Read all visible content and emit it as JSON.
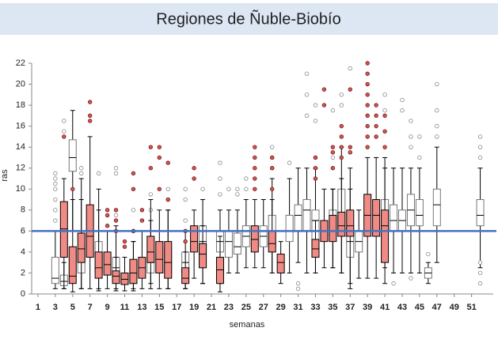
{
  "chart_data": {
    "type": "box",
    "title": "Regiones de Ñuble-Biobío",
    "xlabel": "semanas",
    "ylabel": "ras",
    "xlim": [
      0,
      53.5
    ],
    "xticks": [
      1,
      3,
      5,
      7,
      9,
      11,
      13,
      15,
      17,
      19,
      21,
      23,
      25,
      27,
      29,
      31,
      33,
      35,
      37,
      39,
      41,
      43,
      45,
      47,
      49,
      51
    ],
    "ylim": [
      0,
      22
    ],
    "yticks": [
      0,
      2,
      4,
      6,
      8,
      10,
      12,
      14,
      16,
      18,
      20,
      22
    ],
    "reference_line": {
      "value": 6,
      "color": "#4472c4"
    },
    "series": [
      {
        "color": "#ffffff",
        "flier_color": "#ffffff",
        "boxes": [
          {
            "x": 3,
            "whislo": 0.5,
            "q1": 1,
            "med": 1.5,
            "q3": 3.5,
            "whishi": 6,
            "fliers": [
              7,
              8,
              9,
              10,
              10.5,
              11,
              11.5
            ]
          },
          {
            "x": 4,
            "whislo": 0.5,
            "q1": 0.8,
            "med": 1.2,
            "q3": 1.8,
            "whishi": 3,
            "fliers": [
              15.5,
              16.5
            ]
          },
          {
            "x": 5,
            "whislo": 6,
            "q1": 11.7,
            "med": 13,
            "q3": 14.7,
            "whishi": 17.5,
            "fliers": []
          },
          {
            "x": 6,
            "whislo": 0.5,
            "q1": 2,
            "med": 3.2,
            "q3": 4.5,
            "whishi": 11,
            "fliers": [
              11.5,
              12
            ]
          },
          {
            "x": 8,
            "whislo": 0.5,
            "q1": 2,
            "med": 3,
            "q3": 5,
            "whishi": 10,
            "fliers": [
              11.5
            ]
          },
          {
            "x": 10,
            "whislo": 0.5,
            "q1": 1.5,
            "med": 2.5,
            "q3": 3.5,
            "whishi": 6.5,
            "fliers": [
              7.5,
              11.5,
              12
            ]
          },
          {
            "x": 12,
            "whislo": 0.5,
            "q1": 1,
            "med": 2,
            "q3": 3,
            "whishi": 5,
            "fliers": [
              6,
              8
            ]
          },
          {
            "x": 14,
            "whislo": 0.5,
            "q1": 2,
            "med": 3,
            "q3": 4,
            "whishi": 7,
            "fliers": [
              8,
              9.5
            ]
          },
          {
            "x": 16,
            "whislo": 0.5,
            "q1": 2,
            "med": 3,
            "q3": 4.5,
            "whishi": 8,
            "fliers": [
              9,
              10
            ]
          },
          {
            "x": 18,
            "whislo": 0.5,
            "q1": 2,
            "med": 3,
            "q3": 4,
            "whishi": 6,
            "fliers": [
              7,
              9,
              10
            ]
          },
          {
            "x": 20,
            "whislo": 1,
            "q1": 2.5,
            "med": 5,
            "q3": 6.5,
            "whishi": 9,
            "fliers": [
              10
            ]
          },
          {
            "x": 22,
            "whislo": 1,
            "q1": 4,
            "med": 5,
            "q3": 6,
            "whishi": 8,
            "fliers": [
              9.5,
              11,
              12.5
            ]
          },
          {
            "x": 23,
            "whislo": 2,
            "q1": 3.5,
            "med": 5,
            "q3": 6,
            "whishi": 8,
            "fliers": [
              10
            ]
          },
          {
            "x": 24,
            "whislo": 2,
            "q1": 3.8,
            "med": 4.5,
            "q3": 5.8,
            "whishi": 8,
            "fliers": [
              9.5,
              10
            ]
          },
          {
            "x": 25,
            "whislo": 2.5,
            "q1": 4.5,
            "med": 5.5,
            "q3": 6.5,
            "whishi": 9,
            "fliers": [
              10,
              11
            ]
          },
          {
            "x": 27,
            "whislo": 2.5,
            "q1": 4.5,
            "med": 5.5,
            "q3": 6.5,
            "whishi": 9,
            "fliers": []
          },
          {
            "x": 28,
            "whislo": 2,
            "q1": 4.5,
            "med": 5.5,
            "q3": 7.5,
            "whishi": 11,
            "fliers": [
              12,
              13,
              14
            ]
          },
          {
            "x": 30,
            "whislo": 2,
            "q1": 5,
            "med": 6,
            "q3": 7.5,
            "whishi": 11,
            "fliers": [
              12.5
            ]
          },
          {
            "x": 31,
            "whislo": 3,
            "q1": 6,
            "med": 7.5,
            "q3": 8.5,
            "whishi": 12,
            "fliers": [
              1,
              0.5
            ]
          },
          {
            "x": 32,
            "whislo": 2,
            "q1": 6,
            "med": 8,
            "q3": 9,
            "whishi": 12,
            "fliers": [
              17,
              19,
              21
            ]
          },
          {
            "x": 33,
            "whislo": 2,
            "q1": 5,
            "med": 7,
            "q3": 8,
            "whishi": 12,
            "fliers": [
              13,
              16.5,
              18
            ]
          },
          {
            "x": 35,
            "whislo": 2.5,
            "q1": 5.5,
            "med": 6.5,
            "q3": 8,
            "whishi": 10,
            "fliers": [
              13,
              17.5
            ]
          },
          {
            "x": 36,
            "whislo": 2,
            "q1": 6,
            "med": 7.5,
            "q3": 10,
            "whishi": 14,
            "fliers": [
              18,
              19
            ]
          },
          {
            "x": 37,
            "whislo": 1,
            "q1": 3.5,
            "med": 5,
            "q3": 6.5,
            "whishi": 10,
            "fliers": [
              21.5
            ]
          },
          {
            "x": 38,
            "whislo": 1.5,
            "q1": 4,
            "med": 5,
            "q3": 6,
            "whishi": 8,
            "fliers": []
          },
          {
            "x": 41,
            "whislo": 2.5,
            "q1": 6,
            "med": 7,
            "q3": 9,
            "whishi": 13,
            "fliers": [
              17.5,
              19
            ]
          },
          {
            "x": 42,
            "whislo": 2,
            "q1": 6,
            "med": 7,
            "q3": 8.5,
            "whishi": 12,
            "fliers": [
              1
            ]
          },
          {
            "x": 43,
            "whislo": 2,
            "q1": 6,
            "med": 7,
            "q3": 8,
            "whishi": 12,
            "fliers": [
              17.5,
              18.5
            ]
          },
          {
            "x": 44,
            "whislo": 2,
            "q1": 6.5,
            "med": 8,
            "q3": 9.5,
            "whishi": 12,
            "fliers": [
              14,
              15,
              16.5,
              1.5
            ]
          },
          {
            "x": 45,
            "whislo": 2,
            "q1": 6.5,
            "med": 7.5,
            "q3": 9,
            "whishi": 12,
            "fliers": [
              13,
              15
            ]
          },
          {
            "x": 46,
            "whislo": 1,
            "q1": 1.5,
            "med": 2,
            "q3": 2.5,
            "whishi": 3,
            "fliers": [
              3.8
            ]
          },
          {
            "x": 47,
            "whislo": 3,
            "q1": 6.5,
            "med": 8.5,
            "q3": 10,
            "whishi": 14,
            "fliers": [
              15,
              16,
              17.5,
              20
            ]
          },
          {
            "x": 52,
            "whislo": 2.5,
            "q1": 6.5,
            "med": 7.5,
            "q3": 9,
            "whishi": 12,
            "fliers": [
              13,
              14,
              15,
              3,
              2,
              1
            ]
          }
        ]
      },
      {
        "color": "#f08a84",
        "flier_color": "#d9534f",
        "boxes": [
          {
            "x": 4,
            "whislo": 0.5,
            "q1": 3.5,
            "med": 6.2,
            "q3": 8.8,
            "whishi": 11,
            "fliers": [
              15
            ]
          },
          {
            "x": 5,
            "whislo": 0.2,
            "q1": 1,
            "med": 1.7,
            "q3": 4.5,
            "whishi": 9,
            "fliers": [
              10
            ]
          },
          {
            "x": 6,
            "whislo": 0.5,
            "q1": 3,
            "med": 4.3,
            "q3": 5.8,
            "whishi": 9,
            "fliers": []
          },
          {
            "x": 7,
            "whislo": 0.5,
            "q1": 3.5,
            "med": 5.5,
            "q3": 8.5,
            "whishi": 15,
            "fliers": [
              16.5,
              17,
              18.3
            ]
          },
          {
            "x": 8,
            "whislo": 0.3,
            "q1": 1.5,
            "med": 2.5,
            "q3": 4,
            "whishi": 8,
            "fliers": []
          },
          {
            "x": 9,
            "whislo": 0.5,
            "q1": 1.8,
            "med": 2.8,
            "q3": 4,
            "whishi": 6,
            "fliers": [
              6.5,
              7.5,
              8
            ]
          },
          {
            "x": 10,
            "whislo": 0.3,
            "q1": 1,
            "med": 1.7,
            "q3": 2.2,
            "whishi": 3.5,
            "fliers": [
              6,
              7,
              8
            ]
          },
          {
            "x": 11,
            "whislo": 0.3,
            "q1": 0.9,
            "med": 1.4,
            "q3": 2,
            "whishi": 3.5,
            "fliers": [
              4.5,
              5
            ]
          },
          {
            "x": 12,
            "whislo": 0.3,
            "q1": 1,
            "med": 2,
            "q3": 3.3,
            "whishi": 5,
            "fliers": [
              6,
              10,
              11.5
            ]
          },
          {
            "x": 13,
            "whislo": 0.5,
            "q1": 1.5,
            "med": 2.5,
            "q3": 3.5,
            "whishi": 6,
            "fliers": [
              7,
              8
            ]
          },
          {
            "x": 14,
            "whislo": 1,
            "q1": 3,
            "med": 4,
            "q3": 5.5,
            "whishi": 9,
            "fliers": [
              12,
              14
            ]
          },
          {
            "x": 15,
            "whislo": 0.5,
            "q1": 2,
            "med": 3.3,
            "q3": 5,
            "whishi": 8,
            "fliers": [
              10,
              13,
              14
            ]
          },
          {
            "x": 16,
            "whislo": 0.5,
            "q1": 1.5,
            "med": 3,
            "q3": 5,
            "whishi": 8,
            "fliers": [
              9,
              12.5
            ]
          },
          {
            "x": 18,
            "whislo": 0.5,
            "q1": 1,
            "med": 1.5,
            "q3": 2.5,
            "whishi": 4,
            "fliers": [
              5,
              6
            ]
          },
          {
            "x": 19,
            "whislo": 1.5,
            "q1": 4,
            "med": 5,
            "q3": 6.5,
            "whishi": 8,
            "fliers": [
              11,
              12
            ]
          },
          {
            "x": 20,
            "whislo": 1,
            "q1": 2.5,
            "med": 3.8,
            "q3": 4.8,
            "whishi": 6.5,
            "fliers": []
          },
          {
            "x": 22,
            "whislo": 0.2,
            "q1": 1,
            "med": 2.3,
            "q3": 3.5,
            "whishi": 5.5,
            "fliers": []
          },
          {
            "x": 26,
            "whislo": 2.5,
            "q1": 4,
            "med": 5.2,
            "q3": 6.5,
            "whishi": 9,
            "fliers": [
              10,
              11,
              12,
              13,
              14
            ]
          },
          {
            "x": 28,
            "whislo": 2,
            "q1": 4,
            "med": 4.8,
            "q3": 6,
            "whishi": 9,
            "fliers": [
              10,
              12,
              13
            ]
          },
          {
            "x": 29,
            "whislo": 1,
            "q1": 2,
            "med": 3,
            "q3": 3.8,
            "whishi": 5,
            "fliers": []
          },
          {
            "x": 33,
            "whislo": 2,
            "q1": 3.5,
            "med": 4.3,
            "q3": 5.2,
            "whishi": 7,
            "fliers": [
              11,
              12,
              13
            ]
          },
          {
            "x": 34,
            "whislo": 2.5,
            "q1": 5,
            "med": 6,
            "q3": 7,
            "whishi": 10,
            "fliers": [
              18,
              19.5
            ]
          },
          {
            "x": 35,
            "whislo": 2.5,
            "q1": 5,
            "med": 6,
            "q3": 7.5,
            "whishi": 10,
            "fliers": [
              12,
              13.5,
              14
            ]
          },
          {
            "x": 36,
            "whislo": 2,
            "q1": 5.5,
            "med": 6.5,
            "q3": 7.8,
            "whishi": 11,
            "fliers": [
              13,
              14,
              15,
              16
            ]
          },
          {
            "x": 37,
            "whislo": 0.5,
            "q1": 5.5,
            "med": 6.5,
            "q3": 8,
            "whishi": 12,
            "fliers": [
              13.5,
              14,
              19.5
            ]
          },
          {
            "x": 39,
            "whislo": 1.5,
            "q1": 5.5,
            "med": 7.5,
            "q3": 9.5,
            "whishi": 13,
            "fliers": [
              14,
              15,
              16,
              17,
              18,
              19,
              20,
              21,
              22
            ]
          },
          {
            "x": 40,
            "whislo": 1.5,
            "q1": 5.5,
            "med": 7.5,
            "q3": 9,
            "whishi": 13,
            "fliers": [
              15,
              16,
              17,
              18
            ]
          },
          {
            "x": 41,
            "whislo": 1,
            "q1": 3,
            "med": 6.5,
            "q3": 8,
            "whishi": 12,
            "fliers": [
              14,
              15.5,
              17
            ]
          }
        ]
      }
    ]
  }
}
